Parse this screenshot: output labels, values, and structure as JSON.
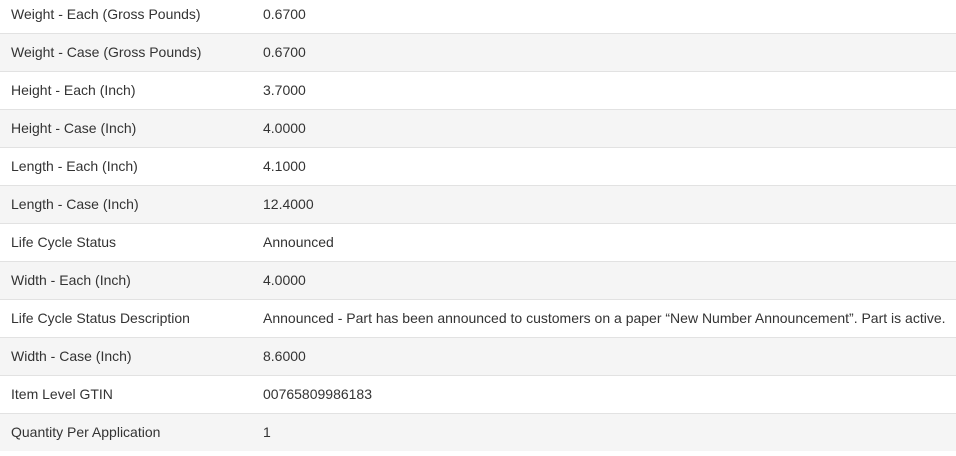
{
  "rows": [
    {
      "label": "Weight - Each (Gross Pounds)",
      "value": "0.6700"
    },
    {
      "label": "Weight - Case (Gross Pounds)",
      "value": "0.6700"
    },
    {
      "label": "Height - Each (Inch)",
      "value": "3.7000"
    },
    {
      "label": "Height - Case (Inch)",
      "value": "4.0000"
    },
    {
      "label": "Length - Each (Inch)",
      "value": "4.1000"
    },
    {
      "label": "Length - Case (Inch)",
      "value": "12.4000"
    },
    {
      "label": "Life Cycle Status",
      "value": "Announced"
    },
    {
      "label": "Width - Each (Inch)",
      "value": "4.0000"
    },
    {
      "label": "Life Cycle Status Description",
      "value": "Announced - Part has been announced to customers on a paper “New Number Announcement”. Part is active."
    },
    {
      "label": "Width - Case (Inch)",
      "value": "8.6000"
    },
    {
      "label": "Item Level GTIN",
      "value": "00765809986183"
    },
    {
      "label": "Quantity Per Application",
      "value": "1"
    }
  ]
}
